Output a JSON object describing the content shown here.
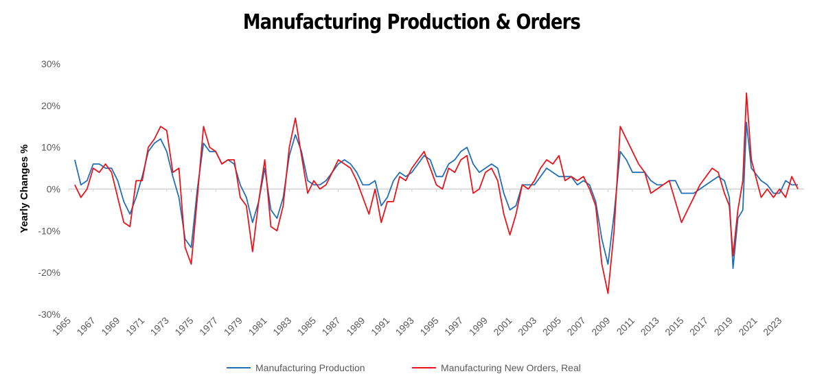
{
  "chart_data": {
    "type": "line",
    "title": "Manufacturing Production & Orders",
    "ylabel": "Yearly Changes %",
    "x": [
      1965.5,
      1966,
      1966.5,
      1967,
      1967.5,
      1968,
      1968.5,
      1969,
      1969.5,
      1970,
      1970.5,
      1971,
      1971.5,
      1972,
      1972.5,
      1973,
      1973.5,
      1974,
      1974.5,
      1975,
      1975.5,
      1976,
      1976.5,
      1977,
      1977.5,
      1978,
      1978.5,
      1979,
      1979.5,
      1980,
      1980.5,
      1981,
      1981.5,
      1982,
      1982.5,
      1983,
      1983.5,
      1984,
      1984.5,
      1985,
      1985.5,
      1986,
      1986.5,
      1987,
      1987.5,
      1988,
      1988.5,
      1989,
      1989.5,
      1990,
      1990.5,
      1991,
      1991.5,
      1992,
      1992.5,
      1993,
      1993.5,
      1994,
      1994.5,
      1995,
      1995.5,
      1996,
      1996.5,
      1997,
      1997.5,
      1998,
      1998.5,
      1999,
      1999.5,
      2000,
      2000.5,
      2001,
      2001.5,
      2002,
      2002.5,
      2003,
      2003.5,
      2004,
      2004.5,
      2005,
      2005.5,
      2006,
      2006.5,
      2007,
      2007.5,
      2008,
      2008.5,
      2009,
      2009.5,
      2010,
      2010.5,
      2011,
      2011.5,
      2012,
      2012.5,
      2013,
      2013.5,
      2014,
      2014.5,
      2015,
      2015.5,
      2016,
      2016.5,
      2017,
      2017.5,
      2018,
      2018.5,
      2018.9,
      2019.2,
      2019.6,
      2020,
      2020.3,
      2020.7,
      2021.5,
      2022,
      2022.5,
      2023,
      2023.5,
      2024,
      2024.5
    ],
    "series": [
      {
        "name": "Manufacturing Production",
        "color": "#1f6fb4",
        "values": [
          7,
          1,
          2,
          6,
          6,
          5,
          5,
          2,
          -3,
          -6,
          -2,
          3,
          9,
          11,
          12,
          9,
          3,
          -2,
          -12,
          -14,
          0,
          11,
          9,
          9,
          6,
          7,
          6,
          1,
          -2,
          -8,
          -3,
          5,
          -5,
          -7,
          -2,
          8,
          13,
          9,
          2,
          1,
          1,
          2,
          4,
          6,
          7,
          6,
          4,
          1,
          1,
          2,
          -4,
          -2,
          2,
          4,
          3,
          4,
          6,
          8,
          7,
          3,
          3,
          6,
          7,
          9,
          10,
          6,
          4,
          5,
          6,
          5,
          -1,
          -5,
          -4,
          1,
          1,
          1,
          3,
          5,
          4,
          3,
          3,
          3,
          1,
          2,
          1,
          -3,
          -12,
          -18,
          -6,
          9,
          7,
          4,
          4,
          4,
          2,
          1,
          1,
          2,
          2,
          -1,
          -1,
          -1,
          0,
          1,
          2,
          3,
          2,
          -2,
          -19,
          -7,
          -5,
          16,
          5,
          2,
          1,
          -1,
          -1,
          2,
          1,
          1
        ]
      },
      {
        "name": "Manufacturing New Orders, Real",
        "color": "#e8131b",
        "values": [
          1,
          -2,
          0,
          5,
          4,
          6,
          4,
          -2,
          -8,
          -9,
          2,
          2,
          10,
          12,
          15,
          14,
          4,
          5,
          -14,
          -18,
          -2,
          15,
          10,
          9,
          6,
          7,
          7,
          -2,
          -4,
          -15,
          -3,
          7,
          -9,
          -10,
          -4,
          10,
          17,
          8,
          -1,
          2,
          0,
          1,
          4,
          7,
          6,
          5,
          2,
          -2,
          -6,
          0,
          -8,
          -3,
          -3,
          3,
          2,
          5,
          7,
          9,
          5,
          1,
          0,
          5,
          4,
          7,
          8,
          -1,
          0,
          4,
          5,
          2,
          -6,
          -11,
          -6,
          1,
          0,
          2,
          5,
          7,
          6,
          8,
          2,
          3,
          2,
          3,
          0,
          -4,
          -18,
          -25,
          -10,
          15,
          12,
          9,
          6,
          4,
          -1,
          0,
          1,
          2,
          -3,
          -8,
          -5,
          -2,
          1,
          3,
          5,
          4,
          -1,
          -4,
          -16,
          -5,
          2,
          23,
          7,
          -2,
          0,
          -2,
          0,
          -2,
          3,
          0
        ]
      }
    ],
    "xlim": [
      1965,
      2025
    ],
    "xticks": [
      1965,
      1967,
      1969,
      1971,
      1973,
      1975,
      1977,
      1979,
      1981,
      1983,
      1985,
      1987,
      1989,
      1991,
      1993,
      1995,
      1997,
      1999,
      2001,
      2003,
      2005,
      2007,
      2009,
      2011,
      2013,
      2015,
      2017,
      2019,
      2021,
      2023
    ],
    "ylim": [
      -30,
      30
    ],
    "yticks": [
      {
        "value": -30,
        "label": "-30%"
      },
      {
        "value": -20,
        "label": "-20%"
      },
      {
        "value": -10,
        "label": "-10%"
      },
      {
        "value": 0,
        "label": "0%"
      },
      {
        "value": 10,
        "label": "10%"
      },
      {
        "value": 20,
        "label": "20%"
      },
      {
        "value": 30,
        "label": "30%"
      }
    ],
    "grid": false,
    "legend": "bottom"
  }
}
